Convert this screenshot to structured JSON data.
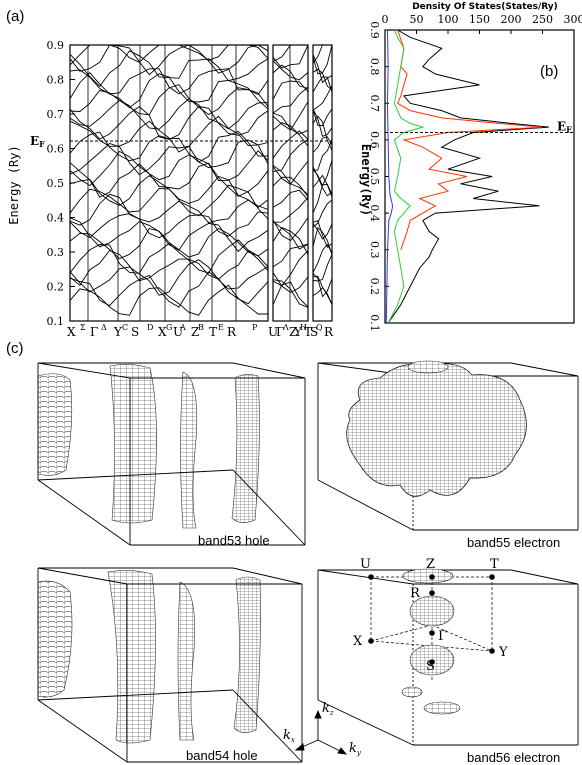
{
  "panels": {
    "a": "(a)",
    "b": "(b)",
    "c": "(c)"
  },
  "band_plot": {
    "ylabel": "Energy (Ry)",
    "fermi_label": "EF",
    "yticks": [
      "0.1",
      "0.2",
      "0.3",
      "0.4",
      "0.5",
      "0.6",
      "0.7",
      "0.8",
      "0.9"
    ],
    "kpoints": [
      {
        "main": "X"
      },
      {
        "main": "Σ",
        "small": true
      },
      {
        "main": "Γ"
      },
      {
        "main": "Δ",
        "small": true
      },
      {
        "main": "Y"
      },
      {
        "main": "C",
        "small": true
      },
      {
        "main": "S"
      },
      {
        "main": "D",
        "small": true
      },
      {
        "main": "X"
      },
      {
        "main": "G",
        "small": true
      },
      {
        "main": "U"
      },
      {
        "main": "A",
        "small": true
      },
      {
        "main": "Z"
      },
      {
        "main": "B",
        "small": true
      },
      {
        "main": "T"
      },
      {
        "main": "E",
        "small": true
      },
      {
        "main": "R"
      },
      {
        "main": "P",
        "small": true
      },
      {
        "main": "U"
      },
      {
        "main": "Γ"
      },
      {
        "main": "Λ",
        "small": true
      },
      {
        "main": "Z"
      },
      {
        "main": "Y"
      },
      {
        "main": "H",
        "small": true
      },
      {
        "main": "T"
      },
      {
        "main": "S"
      },
      {
        "main": "Q",
        "small": true
      },
      {
        "main": "R"
      }
    ]
  },
  "chart_data": {
    "type": "line",
    "title": "Density Of States(States/Ry)",
    "xlabel": "Density Of States(States/Ry)",
    "ylabel": "Energy(Ry)",
    "xticks": [
      "0",
      "50",
      "100",
      "150",
      "200",
      "250",
      "300"
    ],
    "yticks": [
      "0.1",
      "0.2",
      "0.3",
      "0.4",
      "0.5",
      "0.6",
      "0.7",
      "0.8",
      "0.9"
    ],
    "xlim": [
      0,
      300
    ],
    "ylim": [
      0.1,
      0.9
    ],
    "fermi_energy": 0.62,
    "fermi_label": "EF",
    "series": [
      {
        "color": "#000000",
        "points": [
          [
            0.1,
            5
          ],
          [
            0.15,
            25
          ],
          [
            0.2,
            40
          ],
          [
            0.25,
            55
          ],
          [
            0.28,
            70
          ],
          [
            0.3,
            75
          ],
          [
            0.33,
            85
          ],
          [
            0.35,
            70
          ],
          [
            0.38,
            60
          ],
          [
            0.4,
            80
          ],
          [
            0.42,
            245
          ],
          [
            0.44,
            140
          ],
          [
            0.46,
            180
          ],
          [
            0.48,
            120
          ],
          [
            0.5,
            170
          ],
          [
            0.52,
            100
          ],
          [
            0.55,
            150
          ],
          [
            0.58,
            90
          ],
          [
            0.6,
            110
          ],
          [
            0.62,
            140
          ],
          [
            0.635,
            260
          ],
          [
            0.645,
            200
          ],
          [
            0.66,
            120
          ],
          [
            0.68,
            90
          ],
          [
            0.7,
            40
          ],
          [
            0.72,
            30
          ],
          [
            0.75,
            150
          ],
          [
            0.78,
            80
          ],
          [
            0.8,
            60
          ],
          [
            0.82,
            70
          ],
          [
            0.85,
            90
          ],
          [
            0.88,
            40
          ],
          [
            0.9,
            20
          ]
        ]
      },
      {
        "color": "#ff3300",
        "points": [
          [
            0.3,
            25
          ],
          [
            0.35,
            35
          ],
          [
            0.38,
            40
          ],
          [
            0.4,
            60
          ],
          [
            0.42,
            80
          ],
          [
            0.44,
            55
          ],
          [
            0.46,
            100
          ],
          [
            0.48,
            85
          ],
          [
            0.5,
            130
          ],
          [
            0.52,
            70
          ],
          [
            0.55,
            90
          ],
          [
            0.58,
            60
          ],
          [
            0.6,
            30
          ],
          [
            0.62,
            100
          ],
          [
            0.635,
            250
          ],
          [
            0.645,
            180
          ],
          [
            0.66,
            90
          ],
          [
            0.68,
            40
          ],
          [
            0.7,
            20
          ],
          [
            0.72,
            25
          ],
          [
            0.75,
            30
          ],
          [
            0.78,
            35
          ],
          [
            0.8,
            25
          ],
          [
            0.85,
            30
          ],
          [
            0.9,
            20
          ]
        ]
      },
      {
        "color": "#33cc33",
        "points": [
          [
            0.1,
            5
          ],
          [
            0.15,
            20
          ],
          [
            0.2,
            30
          ],
          [
            0.25,
            25
          ],
          [
            0.3,
            20
          ],
          [
            0.35,
            15
          ],
          [
            0.38,
            20
          ],
          [
            0.4,
            30
          ],
          [
            0.42,
            40
          ],
          [
            0.44,
            25
          ],
          [
            0.46,
            15
          ],
          [
            0.5,
            20
          ],
          [
            0.55,
            25
          ],
          [
            0.6,
            15
          ],
          [
            0.62,
            30
          ],
          [
            0.635,
            60
          ],
          [
            0.645,
            40
          ],
          [
            0.66,
            25
          ],
          [
            0.7,
            15
          ],
          [
            0.75,
            20
          ],
          [
            0.8,
            25
          ],
          [
            0.85,
            30
          ],
          [
            0.88,
            20
          ],
          [
            0.9,
            15
          ]
        ]
      },
      {
        "color": "#3333ff",
        "points": [
          [
            0.1,
            2
          ],
          [
            0.2,
            3
          ],
          [
            0.3,
            4
          ],
          [
            0.38,
            6
          ],
          [
            0.4,
            10
          ],
          [
            0.42,
            12
          ],
          [
            0.45,
            8
          ],
          [
            0.5,
            6
          ],
          [
            0.6,
            5
          ],
          [
            0.7,
            4
          ],
          [
            0.8,
            5
          ],
          [
            0.9,
            4
          ]
        ]
      }
    ]
  },
  "fermi_surfaces": [
    {
      "caption": "band53 hole"
    },
    {
      "caption": "band55 electron"
    },
    {
      "caption": "band54 hole"
    },
    {
      "caption": "band56 electron"
    }
  ],
  "bz_labels": {
    "U": "U",
    "Z": "Z",
    "T": "T",
    "R": "R",
    "X": "X",
    "G": "Γ",
    "Y": "Y",
    "S": "S"
  },
  "k_axes": {
    "kz": "kz",
    "kx": "kx",
    "ky": "ky"
  }
}
